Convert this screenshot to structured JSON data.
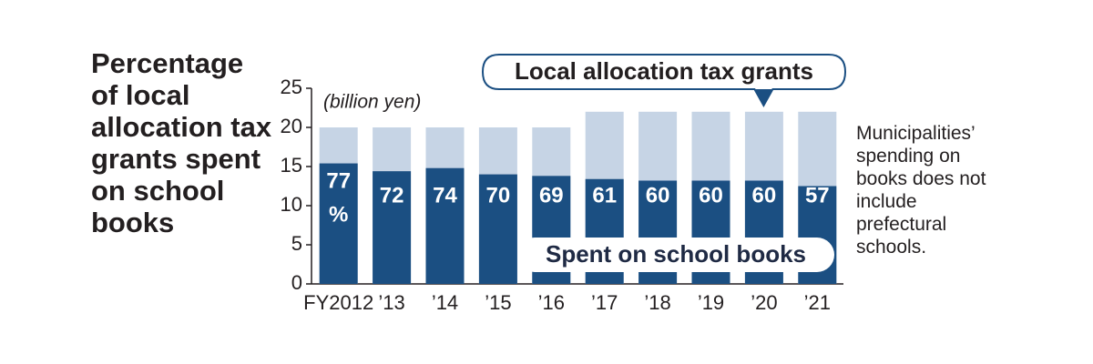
{
  "chart_data": {
    "type": "bar",
    "title": "Percentage of local allocation tax grants spent on school books",
    "unit_label": "(billion yen)",
    "categories": [
      "FY2012",
      "’13",
      "’14",
      "’15",
      "’16",
      "’17",
      "’18",
      "’19",
      "’20",
      "’21"
    ],
    "series": [
      {
        "name": "Local allocation tax grants",
        "color": "#c6d4e5",
        "values": [
          20,
          20,
          20,
          20,
          20,
          22,
          22,
          22,
          22,
          22
        ]
      },
      {
        "name": "Spent on school books",
        "color": "#1b4f82",
        "values": [
          15.4,
          14.4,
          14.8,
          14,
          13.8,
          13.4,
          13.2,
          13.2,
          13.2,
          12.5
        ]
      }
    ],
    "percentages": [
      77,
      72,
      74,
      70,
      69,
      61,
      60,
      60,
      60,
      57
    ],
    "percent_sign": "%",
    "overlay": true,
    "ylim": [
      0,
      25
    ],
    "yticks": [
      0,
      5,
      10,
      15,
      20,
      25
    ],
    "note": "Municipalities’ spending on books does not include prefectural schools."
  }
}
